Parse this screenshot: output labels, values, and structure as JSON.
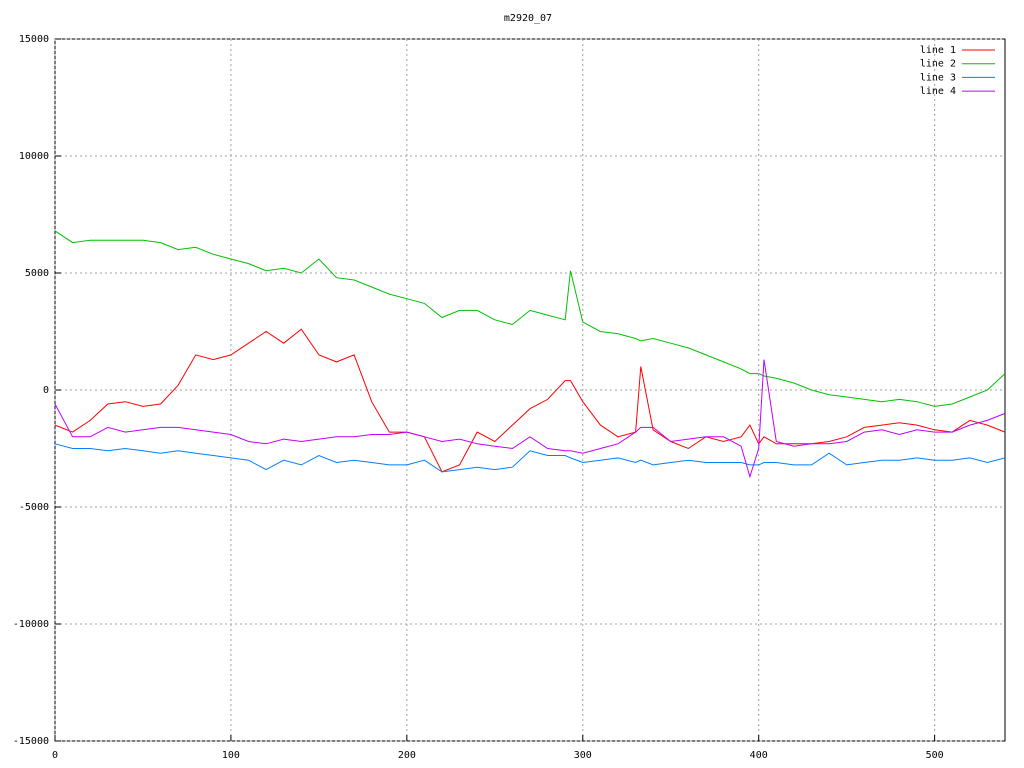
{
  "chart_data": {
    "type": "line",
    "title": "m2920_07",
    "x": [
      0,
      10,
      20,
      30,
      40,
      50,
      60,
      70,
      80,
      90,
      100,
      110,
      120,
      130,
      140,
      150,
      160,
      170,
      180,
      190,
      200,
      210,
      220,
      230,
      240,
      250,
      260,
      270,
      280,
      290,
      293,
      300,
      310,
      320,
      330,
      333,
      340,
      350,
      360,
      370,
      380,
      390,
      395,
      400,
      403,
      410,
      420,
      430,
      440,
      450,
      460,
      470,
      480,
      490,
      500,
      510,
      520,
      530,
      540
    ],
    "series": [
      {
        "name": "line 1",
        "color": "#ff0000",
        "values": [
          -1500,
          -1800,
          -1300,
          -600,
          -500,
          -700,
          -600,
          200,
          1500,
          1300,
          1500,
          2000,
          2500,
          2000,
          2600,
          1500,
          1200,
          1500,
          -500,
          -1800,
          -1800,
          -2000,
          -3500,
          -3200,
          -1800,
          -2200,
          -1500,
          -800,
          -400,
          400,
          400,
          -500,
          -1500,
          -2000,
          -1800,
          1000,
          -1700,
          -2200,
          -2500,
          -2000,
          -2200,
          -2000,
          -1500,
          -2300,
          -2000,
          -2300,
          -2300,
          -2300,
          -2200,
          -2000,
          -1600,
          -1500,
          -1400,
          -1500,
          -1700,
          -1800,
          -1300,
          -1500,
          -1800
        ]
      },
      {
        "name": "line 2",
        "color": "#00c000",
        "values": [
          6800,
          6300,
          6400,
          6400,
          6400,
          6400,
          6300,
          6000,
          6100,
          5800,
          5600,
          5400,
          5100,
          5200,
          5000,
          5600,
          4800,
          4700,
          4400,
          4100,
          3900,
          3700,
          3100,
          3400,
          3400,
          3000,
          2800,
          3400,
          3200,
          3000,
          5100,
          2900,
          2500,
          2400,
          2200,
          2100,
          2200,
          2000,
          1800,
          1500,
          1200,
          900,
          700,
          700,
          600,
          500,
          300,
          0,
          -200,
          -300,
          -400,
          -500,
          -400,
          -500,
          -700,
          -600,
          -300,
          0,
          700
        ]
      },
      {
        "name": "line 3",
        "color": "#0080ff",
        "values": [
          -2300,
          -2500,
          -2500,
          -2600,
          -2500,
          -2600,
          -2700,
          -2600,
          -2700,
          -2800,
          -2900,
          -3000,
          -3400,
          -3000,
          -3200,
          -2800,
          -3100,
          -3000,
          -3100,
          -3200,
          -3200,
          -3000,
          -3500,
          -3400,
          -3300,
          -3400,
          -3300,
          -2600,
          -2800,
          -2800,
          -2900,
          -3100,
          -3000,
          -2900,
          -3100,
          -3000,
          -3200,
          -3100,
          -3000,
          -3100,
          -3100,
          -3100,
          -3200,
          -3200,
          -3100,
          -3100,
          -3200,
          -3200,
          -2700,
          -3200,
          -3100,
          -3000,
          -3000,
          -2900,
          -3000,
          -3000,
          -2900,
          -3100,
          -2900
        ]
      },
      {
        "name": "line 4",
        "color": "#c000ff",
        "values": [
          -600,
          -2000,
          -2000,
          -1600,
          -1800,
          -1700,
          -1600,
          -1600,
          -1700,
          -1800,
          -1900,
          -2200,
          -2300,
          -2100,
          -2200,
          -2100,
          -2000,
          -2000,
          -1900,
          -1900,
          -1800,
          -2000,
          -2200,
          -2100,
          -2300,
          -2400,
          -2500,
          -2000,
          -2500,
          -2600,
          -2600,
          -2700,
          -2500,
          -2300,
          -1800,
          -1600,
          -1600,
          -2200,
          -2100,
          -2000,
          -2000,
          -2400,
          -3700,
          -2500,
          1300,
          -2200,
          -2400,
          -2300,
          -2300,
          -2200,
          -1800,
          -1700,
          -1900,
          -1700,
          -1800,
          -1800,
          -1500,
          -1300,
          -1000
        ]
      }
    ],
    "xlim": [
      0,
      540
    ],
    "xticks": [
      0,
      100,
      200,
      300,
      400,
      500
    ],
    "ylim": [
      -15000,
      15000
    ],
    "yticks": [
      -15000,
      -10000,
      -5000,
      0,
      5000,
      10000,
      15000
    ],
    "grid": true,
    "legend": "top-right"
  }
}
